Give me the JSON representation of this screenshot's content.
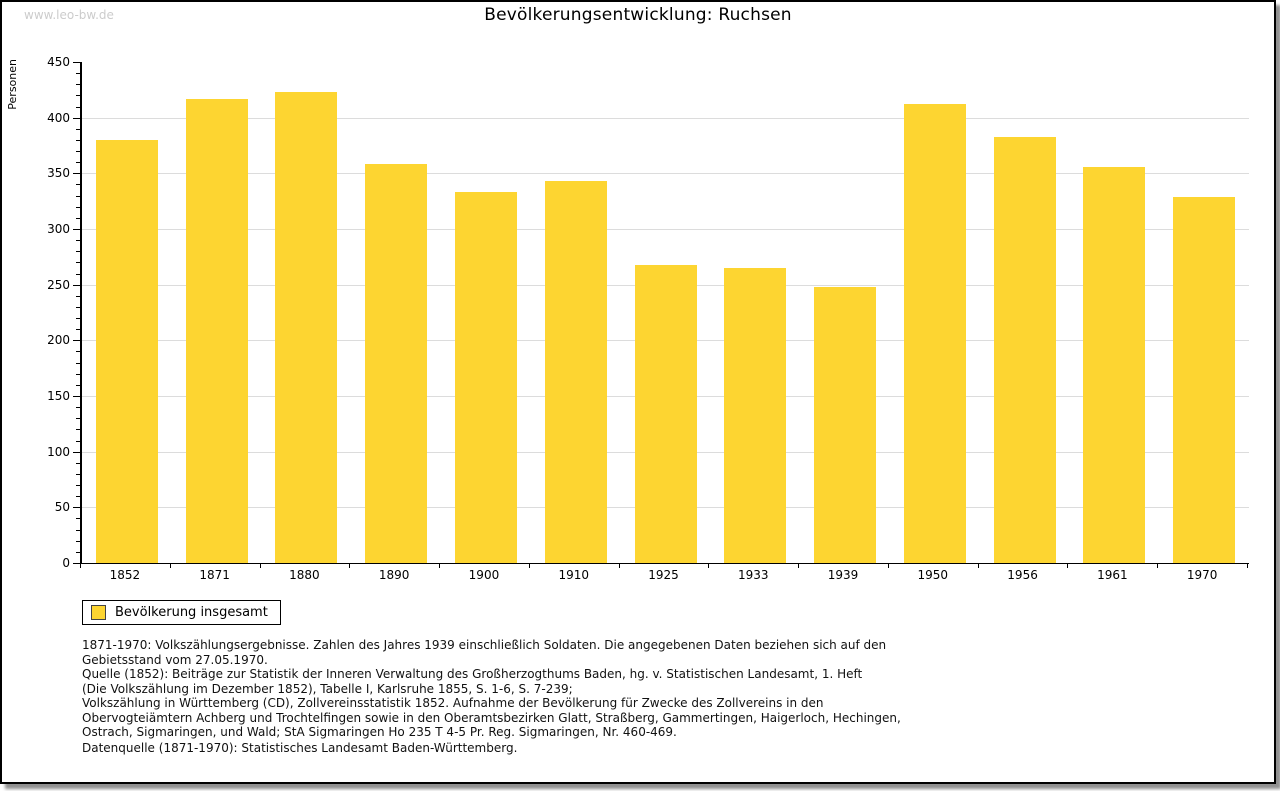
{
  "watermark": "www.leo-bw.de",
  "chart_data": {
    "type": "bar",
    "title": "Bevölkerungsentwicklung: Ruchsen",
    "xlabel": "",
    "ylabel": "Personen",
    "categories": [
      "1852",
      "1871",
      "1880",
      "1890",
      "1900",
      "1910",
      "1925",
      "1933",
      "1939",
      "1950",
      "1956",
      "1961",
      "1970"
    ],
    "values": [
      380,
      417,
      423,
      358,
      333,
      343,
      268,
      265,
      248,
      412,
      383,
      356,
      329
    ],
    "series_name": "Bevölkerung insgesamt",
    "ylim": [
      0,
      450
    ],
    "ytick_major": 50,
    "ytick_minor": 10,
    "grid": true,
    "legend_position": "bottom-left",
    "bar_color": "#fdd531",
    "grid_color": "#dcdcdc"
  },
  "legend": {
    "label": "Bevölkerung insgesamt",
    "swatch_color": "#fdd531"
  },
  "footnotes": {
    "lines": [
      "1871-1970: Volkszählungsergebnisse. Zahlen des Jahres 1939 einschließlich Soldaten. Die angegebenen Daten beziehen sich auf den",
      "Gebietsstand vom 27.05.1970.",
      "Quelle (1852): Beiträge zur Statistik der Inneren Verwaltung des Großherzogthums Baden, hg. v. Statistischen Landesamt, 1. Heft",
      "(Die Volkszählung im Dezember 1852), Tabelle I, Karlsruhe 1855, S. 1-6, S. 7-239;",
      "Volkszählung in Württemberg (CD), Zollvereinsstatistik 1852. Aufnahme der Bevölkerung für Zwecke des Zollvereins in den",
      "Obervogteiämtern Achberg und Trochtelfingen sowie in den Oberamtsbezirken Glatt, Straßberg, Gammertingen, Haigerloch, Hechingen,",
      "Ostrach, Sigmaringen, und Wald; StA Sigmaringen Ho 235 T 4-5 Pr. Reg. Sigmaringen, Nr. 460-469."
    ],
    "datasource": "Datenquelle (1871-1970): Statistisches Landesamt Baden-Württemberg."
  },
  "colors": {
    "bar": "#fdd531",
    "grid": "#dcdcdc",
    "watermark": "#cccccc",
    "frame_border": "#000000",
    "shadow": "#8f8f8f"
  }
}
